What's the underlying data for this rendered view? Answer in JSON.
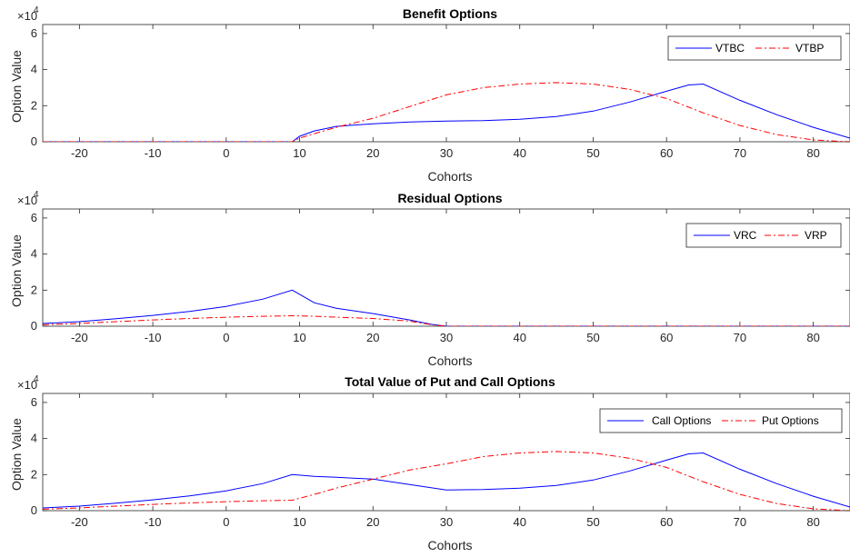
{
  "chart_data": [
    {
      "type": "line",
      "title": "Benefit Options",
      "xlabel": "Cohorts",
      "ylabel": "Option Value",
      "y_multiplier": "×10",
      "y_multiplier_exp": "4",
      "xlim": [
        -25,
        85
      ],
      "ylim": [
        0,
        6.5
      ],
      "y_scale_factor": 10000,
      "xticks": [
        -20,
        -10,
        0,
        10,
        20,
        30,
        40,
        50,
        60,
        70,
        80
      ],
      "xtick_labels": [
        "-20",
        "-10",
        "0",
        "10",
        "20",
        "30",
        "40",
        "50",
        "60",
        "70",
        "80"
      ],
      "yticks": [
        0,
        2,
        4,
        6
      ],
      "ytick_labels": [
        "0",
        "2",
        "4",
        "6"
      ],
      "legend_position": "top-right",
      "series": [
        {
          "name": "VTBC",
          "color": "#0000ff",
          "style": "solid",
          "x": [
            -25,
            9,
            10,
            12,
            15,
            20,
            25,
            30,
            35,
            40,
            45,
            50,
            55,
            60,
            63,
            65,
            70,
            75,
            80,
            85
          ],
          "y": [
            0,
            0,
            0.3,
            0.6,
            0.85,
            1.0,
            1.1,
            1.15,
            1.17,
            1.25,
            1.4,
            1.7,
            2.2,
            2.8,
            3.15,
            3.2,
            2.3,
            1.5,
            0.8,
            0.2
          ]
        },
        {
          "name": "VTBP",
          "color": "#ff0000",
          "style": "dashdot",
          "x": [
            -25,
            9,
            10,
            12,
            15,
            20,
            25,
            30,
            35,
            40,
            45,
            50,
            55,
            60,
            65,
            70,
            75,
            80,
            85
          ],
          "y": [
            0,
            0,
            0.2,
            0.45,
            0.8,
            1.3,
            1.95,
            2.6,
            3.0,
            3.2,
            3.28,
            3.2,
            2.9,
            2.4,
            1.6,
            0.9,
            0.4,
            0.1,
            0
          ]
        }
      ]
    },
    {
      "type": "line",
      "title": "Residual Options",
      "xlabel": "Cohorts",
      "ylabel": "Option Value",
      "y_multiplier": "×10",
      "y_multiplier_exp": "4",
      "xlim": [
        -25,
        85
      ],
      "ylim": [
        0,
        6.5
      ],
      "y_scale_factor": 10000,
      "xticks": [
        -20,
        -10,
        0,
        10,
        20,
        30,
        40,
        50,
        60,
        70,
        80
      ],
      "xtick_labels": [
        "-20",
        "-10",
        "0",
        "10",
        "20",
        "30",
        "40",
        "50",
        "60",
        "70",
        "80"
      ],
      "yticks": [
        0,
        2,
        4,
        6
      ],
      "ytick_labels": [
        "0",
        "2",
        "4",
        "6"
      ],
      "legend_position": "top-right",
      "series": [
        {
          "name": "VRC",
          "color": "#0000ff",
          "style": "solid",
          "x": [
            -25,
            -20,
            -15,
            -10,
            -5,
            0,
            5,
            9,
            12,
            15,
            20,
            25,
            28,
            30,
            85
          ],
          "y": [
            0.15,
            0.25,
            0.42,
            0.6,
            0.82,
            1.1,
            1.5,
            2.0,
            1.3,
            1.0,
            0.7,
            0.35,
            0.1,
            0,
            0
          ]
        },
        {
          "name": "VRP",
          "color": "#ff0000",
          "style": "dashdot",
          "x": [
            -25,
            -20,
            -15,
            -10,
            -5,
            0,
            5,
            9,
            12,
            15,
            20,
            25,
            28,
            30,
            85
          ],
          "y": [
            0.08,
            0.15,
            0.25,
            0.35,
            0.43,
            0.5,
            0.55,
            0.58,
            0.55,
            0.5,
            0.43,
            0.28,
            0.08,
            0,
            0
          ]
        }
      ]
    },
    {
      "type": "line",
      "title": "Total Value of Put and Call Options",
      "xlabel": "Cohorts",
      "ylabel": "Option Value",
      "y_multiplier": "×10",
      "y_multiplier_exp": "4",
      "xlim": [
        -25,
        85
      ],
      "ylim": [
        0,
        6.5
      ],
      "y_scale_factor": 10000,
      "xticks": [
        -20,
        -10,
        0,
        10,
        20,
        30,
        40,
        50,
        60,
        70,
        80
      ],
      "xtick_labels": [
        "-20",
        "-10",
        "0",
        "10",
        "20",
        "30",
        "40",
        "50",
        "60",
        "70",
        "80"
      ],
      "yticks": [
        0,
        2,
        4,
        6
      ],
      "ytick_labels": [
        "0",
        "2",
        "4",
        "6"
      ],
      "legend_position": "top-right",
      "series": [
        {
          "name": "Call Options",
          "color": "#0000ff",
          "style": "solid",
          "x": [
            -25,
            -20,
            -15,
            -10,
            -5,
            0,
            5,
            9,
            12,
            15,
            20,
            25,
            30,
            35,
            40,
            45,
            50,
            55,
            60,
            63,
            65,
            70,
            75,
            80,
            85
          ],
          "y": [
            0.15,
            0.25,
            0.42,
            0.6,
            0.82,
            1.1,
            1.5,
            2.0,
            1.9,
            1.85,
            1.75,
            1.45,
            1.15,
            1.17,
            1.25,
            1.4,
            1.7,
            2.2,
            2.8,
            3.15,
            3.2,
            2.3,
            1.5,
            0.8,
            0.2
          ]
        },
        {
          "name": "Put Options",
          "color": "#ff0000",
          "style": "dashdot",
          "x": [
            -25,
            -20,
            -15,
            -10,
            -5,
            0,
            5,
            9,
            12,
            15,
            20,
            25,
            30,
            35,
            40,
            45,
            50,
            55,
            60,
            65,
            70,
            75,
            80,
            85
          ],
          "y": [
            0.08,
            0.15,
            0.25,
            0.35,
            0.43,
            0.5,
            0.55,
            0.58,
            0.9,
            1.25,
            1.75,
            2.25,
            2.6,
            3.0,
            3.2,
            3.28,
            3.2,
            2.9,
            2.4,
            1.6,
            0.9,
            0.4,
            0.1,
            0
          ]
        }
      ]
    }
  ]
}
